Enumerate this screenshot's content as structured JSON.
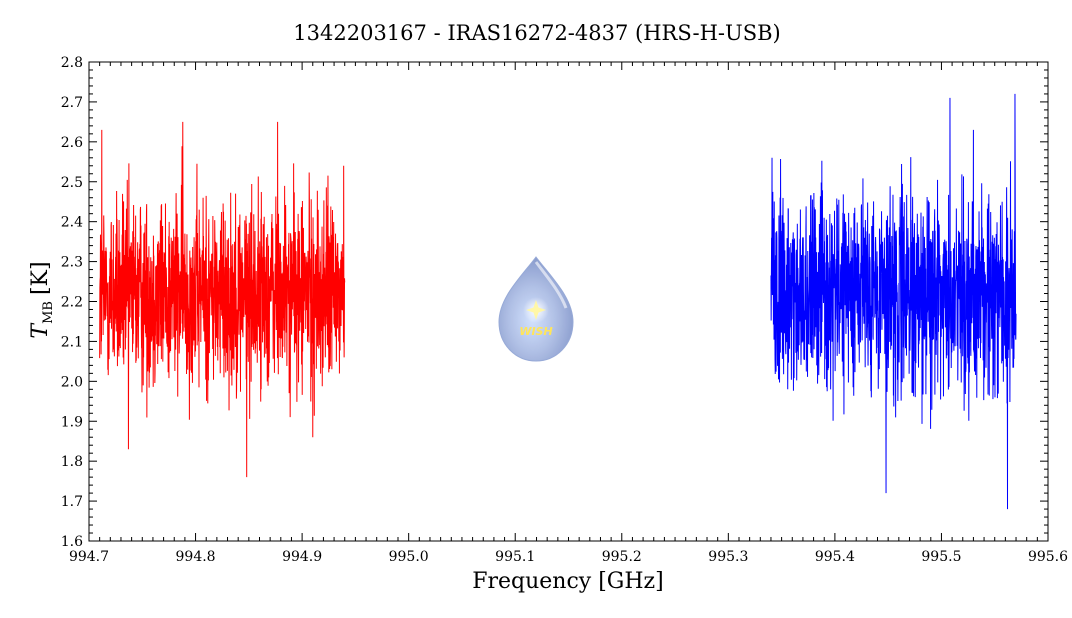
{
  "chart_data": {
    "type": "line",
    "title": "1342203167 - IRAS16272-4837 (HRS-H-USB)",
    "xlabel": "Frequency [GHz]",
    "ylabel_main": "T",
    "ylabel_sub": "MB",
    "ylabel_unit": "[K]",
    "xlim": [
      994.7,
      995.6
    ],
    "ylim": [
      1.6,
      2.8
    ],
    "x_ticks": [
      994.7,
      994.8,
      994.9,
      995.0,
      995.1,
      995.2,
      995.3,
      995.4,
      995.5,
      995.6
    ],
    "x_tick_labels": [
      "994.7",
      "994.8",
      "994.9",
      "995.0",
      "995.1",
      "995.2",
      "995.3",
      "995.4",
      "995.5",
      "995.6"
    ],
    "y_ticks": [
      1.6,
      1.7,
      1.8,
      1.9,
      2.0,
      2.1,
      2.2,
      2.3,
      2.4,
      2.5,
      2.6,
      2.7,
      2.8
    ],
    "y_tick_labels": [
      "1.6",
      "1.7",
      "1.8",
      "1.9",
      "2.0",
      "2.1",
      "2.2",
      "2.3",
      "2.4",
      "2.5",
      "2.6",
      "2.7",
      "2.8"
    ],
    "grid": false,
    "series": [
      {
        "color": "#ff0000",
        "x_range": [
          994.71,
          994.94
        ],
        "mean": 2.22,
        "noise_sd": 0.14,
        "notable_points": [
          [
            994.712,
            2.63
          ],
          [
            994.737,
            1.83
          ],
          [
            994.788,
            2.65
          ],
          [
            994.848,
            1.76
          ],
          [
            994.877,
            2.65
          ],
          [
            994.91,
            1.86
          ],
          [
            994.939,
            2.54
          ]
        ]
      },
      {
        "color": "#0000ff",
        "x_range": [
          995.34,
          995.57
        ],
        "mean": 2.22,
        "noise_sd": 0.14,
        "notable_points": [
          [
            995.341,
            2.56
          ],
          [
            995.448,
            1.72
          ],
          [
            995.508,
            2.71
          ],
          [
            995.53,
            2.63
          ],
          [
            995.562,
            1.68
          ],
          [
            995.569,
            2.72
          ]
        ]
      }
    ]
  },
  "logo": {
    "text": "WISH",
    "body_color": "#9fb2dc",
    "star_color": "#fff7a0",
    "text_color": "#ffe34d"
  }
}
